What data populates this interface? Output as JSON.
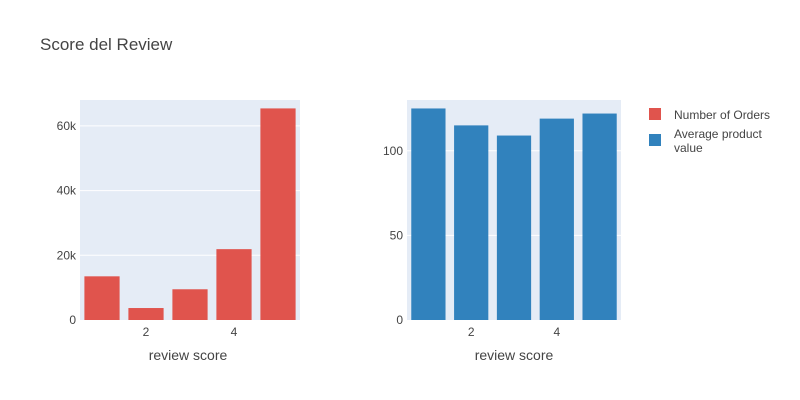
{
  "title": "Score del Review",
  "colors": {
    "plot_bg": "#e5ecf6",
    "grid": "#ffffff",
    "text": "#444444"
  },
  "legend": {
    "position": "top-right",
    "items": [
      {
        "name": "Number of Orders",
        "color": "#e0544d"
      },
      {
        "name": "Average product value",
        "color": "#3182bd"
      }
    ]
  },
  "chart_data": [
    {
      "type": "bar",
      "title": "Score del Review",
      "xlabel": "review score",
      "ylabel": "",
      "x": [
        1,
        2,
        3,
        4,
        5
      ],
      "x_ticks": [
        2,
        4
      ],
      "x_tick_labels": [
        "2",
        "4"
      ],
      "ylim": [
        0,
        68000
      ],
      "y_ticks": [
        0,
        20000,
        40000,
        60000
      ],
      "y_tick_labels": [
        "0",
        "20k",
        "40k",
        "60k"
      ],
      "grid": true,
      "series": [
        {
          "name": "Number of Orders",
          "color": "#e0544d",
          "values": [
            13500,
            3700,
            9500,
            21900,
            65400
          ]
        }
      ]
    },
    {
      "type": "bar",
      "xlabel": "review score",
      "ylabel": "",
      "x": [
        1,
        2,
        3,
        4,
        5
      ],
      "x_ticks": [
        2,
        4
      ],
      "x_tick_labels": [
        "2",
        "4"
      ],
      "ylim": [
        0,
        130
      ],
      "y_ticks": [
        0,
        50,
        100
      ],
      "y_tick_labels": [
        "0",
        "50",
        "100"
      ],
      "grid": true,
      "series": [
        {
          "name": "Average product value",
          "color": "#3182bd",
          "values": [
            125,
            115,
            109,
            119,
            122
          ]
        }
      ]
    }
  ]
}
